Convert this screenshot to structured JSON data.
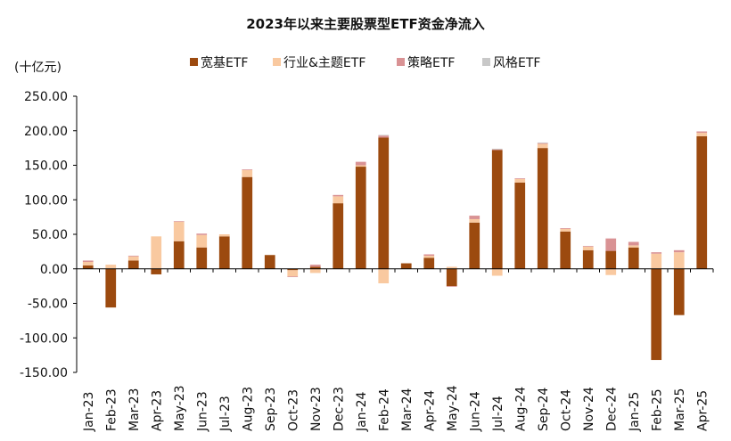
{
  "chart_data": {
    "type": "bar",
    "stacked": true,
    "title": "2023年以来主要股票型ETF资金净流入",
    "unit_label": "(十亿元)",
    "ylim": [
      -150,
      250
    ],
    "yticks": [
      "250.00",
      "200.00",
      "150.00",
      "100.00",
      "50.00",
      "0.00",
      "-50.00",
      "-100.00",
      "-150.00"
    ],
    "ytick_values": [
      250,
      200,
      150,
      100,
      50,
      0,
      -50,
      -100,
      -150
    ],
    "grid": false,
    "legend_position": "top",
    "categories": [
      "Jan-23",
      "Feb-23",
      "Mar-23",
      "Apr-23",
      "May-23",
      "Jun-23",
      "Jul-23",
      "Aug-23",
      "Sep-23",
      "Oct-23",
      "Nov-23",
      "Dec-23",
      "Jan-24",
      "Feb-24",
      "Mar-24",
      "Apr-24",
      "May-24",
      "Jun-24",
      "Jul-24",
      "Aug-24",
      "Sep-24",
      "Oct-24",
      "Nov-24",
      "Dec-24",
      "Jan-25",
      "Feb-25",
      "Mar-25",
      "Apr-25"
    ],
    "series": [
      {
        "name": "宽基ETF",
        "color": "#9c4a0f",
        "values": [
          5,
          -56,
          12,
          -8,
          40,
          31,
          47,
          133,
          20,
          -2,
          3,
          95,
          148,
          190,
          8,
          16,
          -25,
          67,
          172,
          125,
          175,
          54,
          27,
          26,
          31,
          -132,
          -67,
          192
        ]
      },
      {
        "name": "行业&主题ETF",
        "color": "#f9c9a0",
        "values": [
          5,
          6,
          6,
          47,
          28,
          18,
          3,
          10,
          0,
          -9,
          -6,
          10,
          2,
          -21,
          0,
          3,
          3,
          5,
          -10,
          5,
          6,
          4,
          5,
          -9,
          3,
          22,
          24,
          5
        ]
      },
      {
        "name": "策略ETF",
        "color": "#d99294",
        "values": [
          2,
          0,
          1,
          0,
          1,
          2,
          0,
          1,
          0,
          -1,
          3,
          2,
          5,
          3,
          0,
          2,
          -1,
          5,
          1,
          1,
          1,
          1,
          1,
          18,
          5,
          2,
          3,
          2
        ]
      },
      {
        "name": "风格ETF",
        "color": "#c8c8c8",
        "values": [
          0,
          0,
          0,
          0,
          0,
          0,
          0,
          0,
          0,
          0,
          0,
          0,
          0,
          1,
          0,
          0,
          0,
          0,
          1,
          0,
          1,
          0,
          0,
          0,
          0,
          0,
          0,
          0
        ]
      }
    ]
  }
}
